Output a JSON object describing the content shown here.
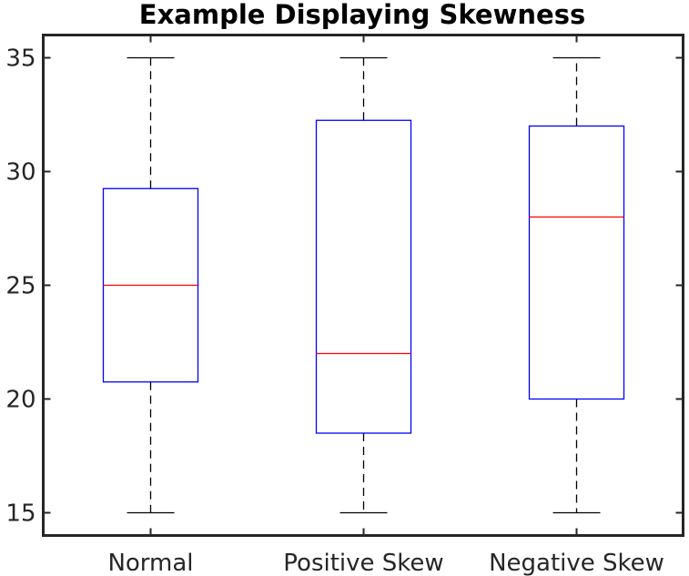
{
  "chart_data": {
    "type": "boxplot",
    "title": "Example Displaying Skewness",
    "xlabel": "",
    "ylabel": "",
    "ylim": [
      14,
      36
    ],
    "yticks": [
      15,
      20,
      25,
      30,
      35
    ],
    "categories": [
      "Normal",
      "Positive Skew",
      "Negative Skew"
    ],
    "boxes": [
      {
        "category": "Normal",
        "whisker_low": 15,
        "q1": 20.75,
        "median": 25,
        "q3": 29.25,
        "whisker_high": 35
      },
      {
        "category": "Positive Skew",
        "whisker_low": 15,
        "q1": 18.5,
        "median": 22,
        "q3": 32.25,
        "whisker_high": 35
      },
      {
        "category": "Negative Skew",
        "whisker_low": 15,
        "q1": 20,
        "median": 28,
        "q3": 32,
        "whisker_high": 35
      }
    ],
    "grid": false,
    "colors": {
      "box": "#0000ff",
      "median": "#ff0000",
      "whisker": "#000000",
      "axes": "#262626",
      "text": "#262626"
    }
  }
}
